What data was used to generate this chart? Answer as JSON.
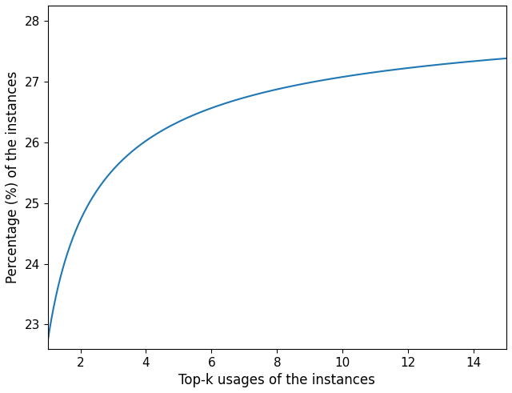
{
  "xlabel": "Top-k usages of the instances",
  "ylabel": "Percentage (%) of the instances",
  "x_start": 1,
  "x_end": 15,
  "line_color": "#1f77b4",
  "line_width": 1.5,
  "xlim": [
    1,
    15
  ],
  "ylim": [
    22.6,
    28.25
  ],
  "xticks": [
    2,
    4,
    6,
    8,
    10,
    12,
    14
  ],
  "yticks": [
    23,
    24,
    25,
    26,
    27,
    28
  ],
  "figsize": [
    6.4,
    4.91
  ],
  "dpi": 100,
  "curve_asymptote": 28.45,
  "curve_b": 5.73,
  "curve_c": 0.62
}
